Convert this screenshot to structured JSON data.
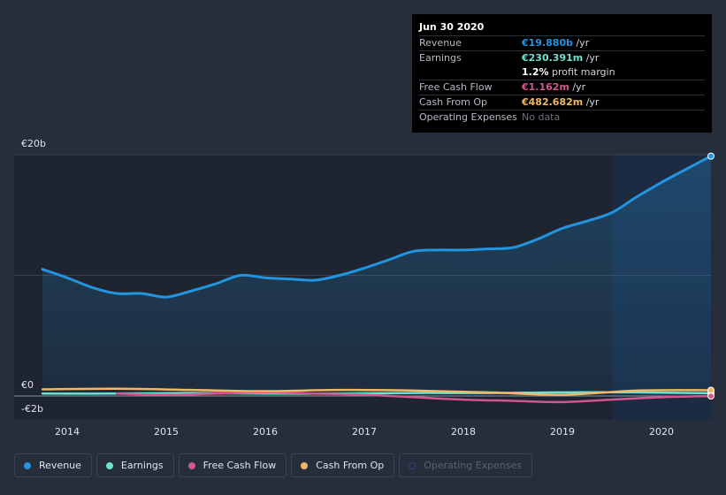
{
  "tooltip": {
    "date": "Jun 30 2020",
    "rows": [
      {
        "label": "Revenue",
        "value": "€19.880b",
        "unit": " /yr",
        "color": "#2394df"
      },
      {
        "label": "Earnings",
        "value": "€230.391m",
        "unit": " /yr",
        "color": "#6ee2d0"
      },
      {
        "label": "",
        "value": "1.2%",
        "unit": " profit margin",
        "color": "#ffffff"
      },
      {
        "label": "Free Cash Flow",
        "value": "€1.162m",
        "unit": " /yr",
        "color": "#d2578f"
      },
      {
        "label": "Cash From Op",
        "value": "€482.682m",
        "unit": " /yr",
        "color": "#f0b866"
      },
      {
        "label": "Operating Expenses",
        "value": "No data",
        "unit": "",
        "color": "#6b717c"
      }
    ]
  },
  "legend": [
    {
      "label": "Revenue",
      "color": "#2394df",
      "active": true
    },
    {
      "label": "Earnings",
      "color": "#6ee2d0",
      "active": true
    },
    {
      "label": "Free Cash Flow",
      "color": "#d2578f",
      "active": true
    },
    {
      "label": "Cash From Op",
      "color": "#f0b866",
      "active": true
    },
    {
      "label": "Operating Expenses",
      "color": "#3b3f7a",
      "active": false
    }
  ],
  "chart_data": {
    "type": "area",
    "y_axis_labels": [
      "€20b",
      "€0",
      "-€2b"
    ],
    "ylim": [
      -2,
      20
    ],
    "x_ticks": [
      "2014",
      "2015",
      "2016",
      "2017",
      "2018",
      "2019",
      "2020"
    ],
    "xlim": [
      2013.7,
      2020.5
    ],
    "gridlines": [
      20,
      10,
      0
    ],
    "highlight_range": [
      2019.5,
      2020.5
    ],
    "series": [
      {
        "name": "Revenue",
        "color": "#2394df",
        "fill": true,
        "x": [
          2013.75,
          2014.0,
          2014.25,
          2014.5,
          2014.75,
          2015.0,
          2015.25,
          2015.5,
          2015.75,
          2016.0,
          2016.25,
          2016.5,
          2016.75,
          2017.0,
          2017.25,
          2017.5,
          2017.75,
          2018.0,
          2018.25,
          2018.5,
          2018.75,
          2019.0,
          2019.25,
          2019.5,
          2019.75,
          2020.0,
          2020.25,
          2020.5
        ],
        "y": [
          10.5,
          9.8,
          9.0,
          8.5,
          8.5,
          8.2,
          8.7,
          9.3,
          10.0,
          9.8,
          9.7,
          9.6,
          10.0,
          10.6,
          11.3,
          12.0,
          12.1,
          12.1,
          12.2,
          12.3,
          13.0,
          13.9,
          14.5,
          15.2,
          16.5,
          17.7,
          18.8,
          19.88
        ]
      },
      {
        "name": "Earnings",
        "color": "#6ee2d0",
        "fill": false,
        "x": [
          2013.75,
          2014.5,
          2015.25,
          2016.0,
          2016.75,
          2017.5,
          2018.25,
          2019.0,
          2019.75,
          2020.5
        ],
        "y": [
          0.2,
          0.2,
          0.25,
          0.2,
          0.2,
          0.25,
          0.25,
          0.3,
          0.3,
          0.23
        ]
      },
      {
        "name": "Free Cash Flow",
        "color": "#d2578f",
        "fill": false,
        "x": [
          2014.5,
          2015.0,
          2015.5,
          2016.0,
          2016.5,
          2017.0,
          2017.5,
          2018.0,
          2018.5,
          2019.0,
          2019.5,
          2020.0,
          2020.5
        ],
        "y": [
          0.2,
          0.1,
          0.2,
          0.3,
          0.2,
          0.1,
          -0.1,
          -0.3,
          -0.4,
          -0.5,
          -0.3,
          -0.1,
          0.0
        ]
      },
      {
        "name": "Cash From Op",
        "color": "#f0b866",
        "fill": false,
        "x": [
          2013.75,
          2014.5,
          2015.25,
          2016.0,
          2016.75,
          2017.5,
          2018.25,
          2019.0,
          2019.75,
          2020.5
        ],
        "y": [
          0.55,
          0.6,
          0.5,
          0.4,
          0.5,
          0.45,
          0.3,
          0.1,
          0.45,
          0.48
        ]
      }
    ]
  }
}
